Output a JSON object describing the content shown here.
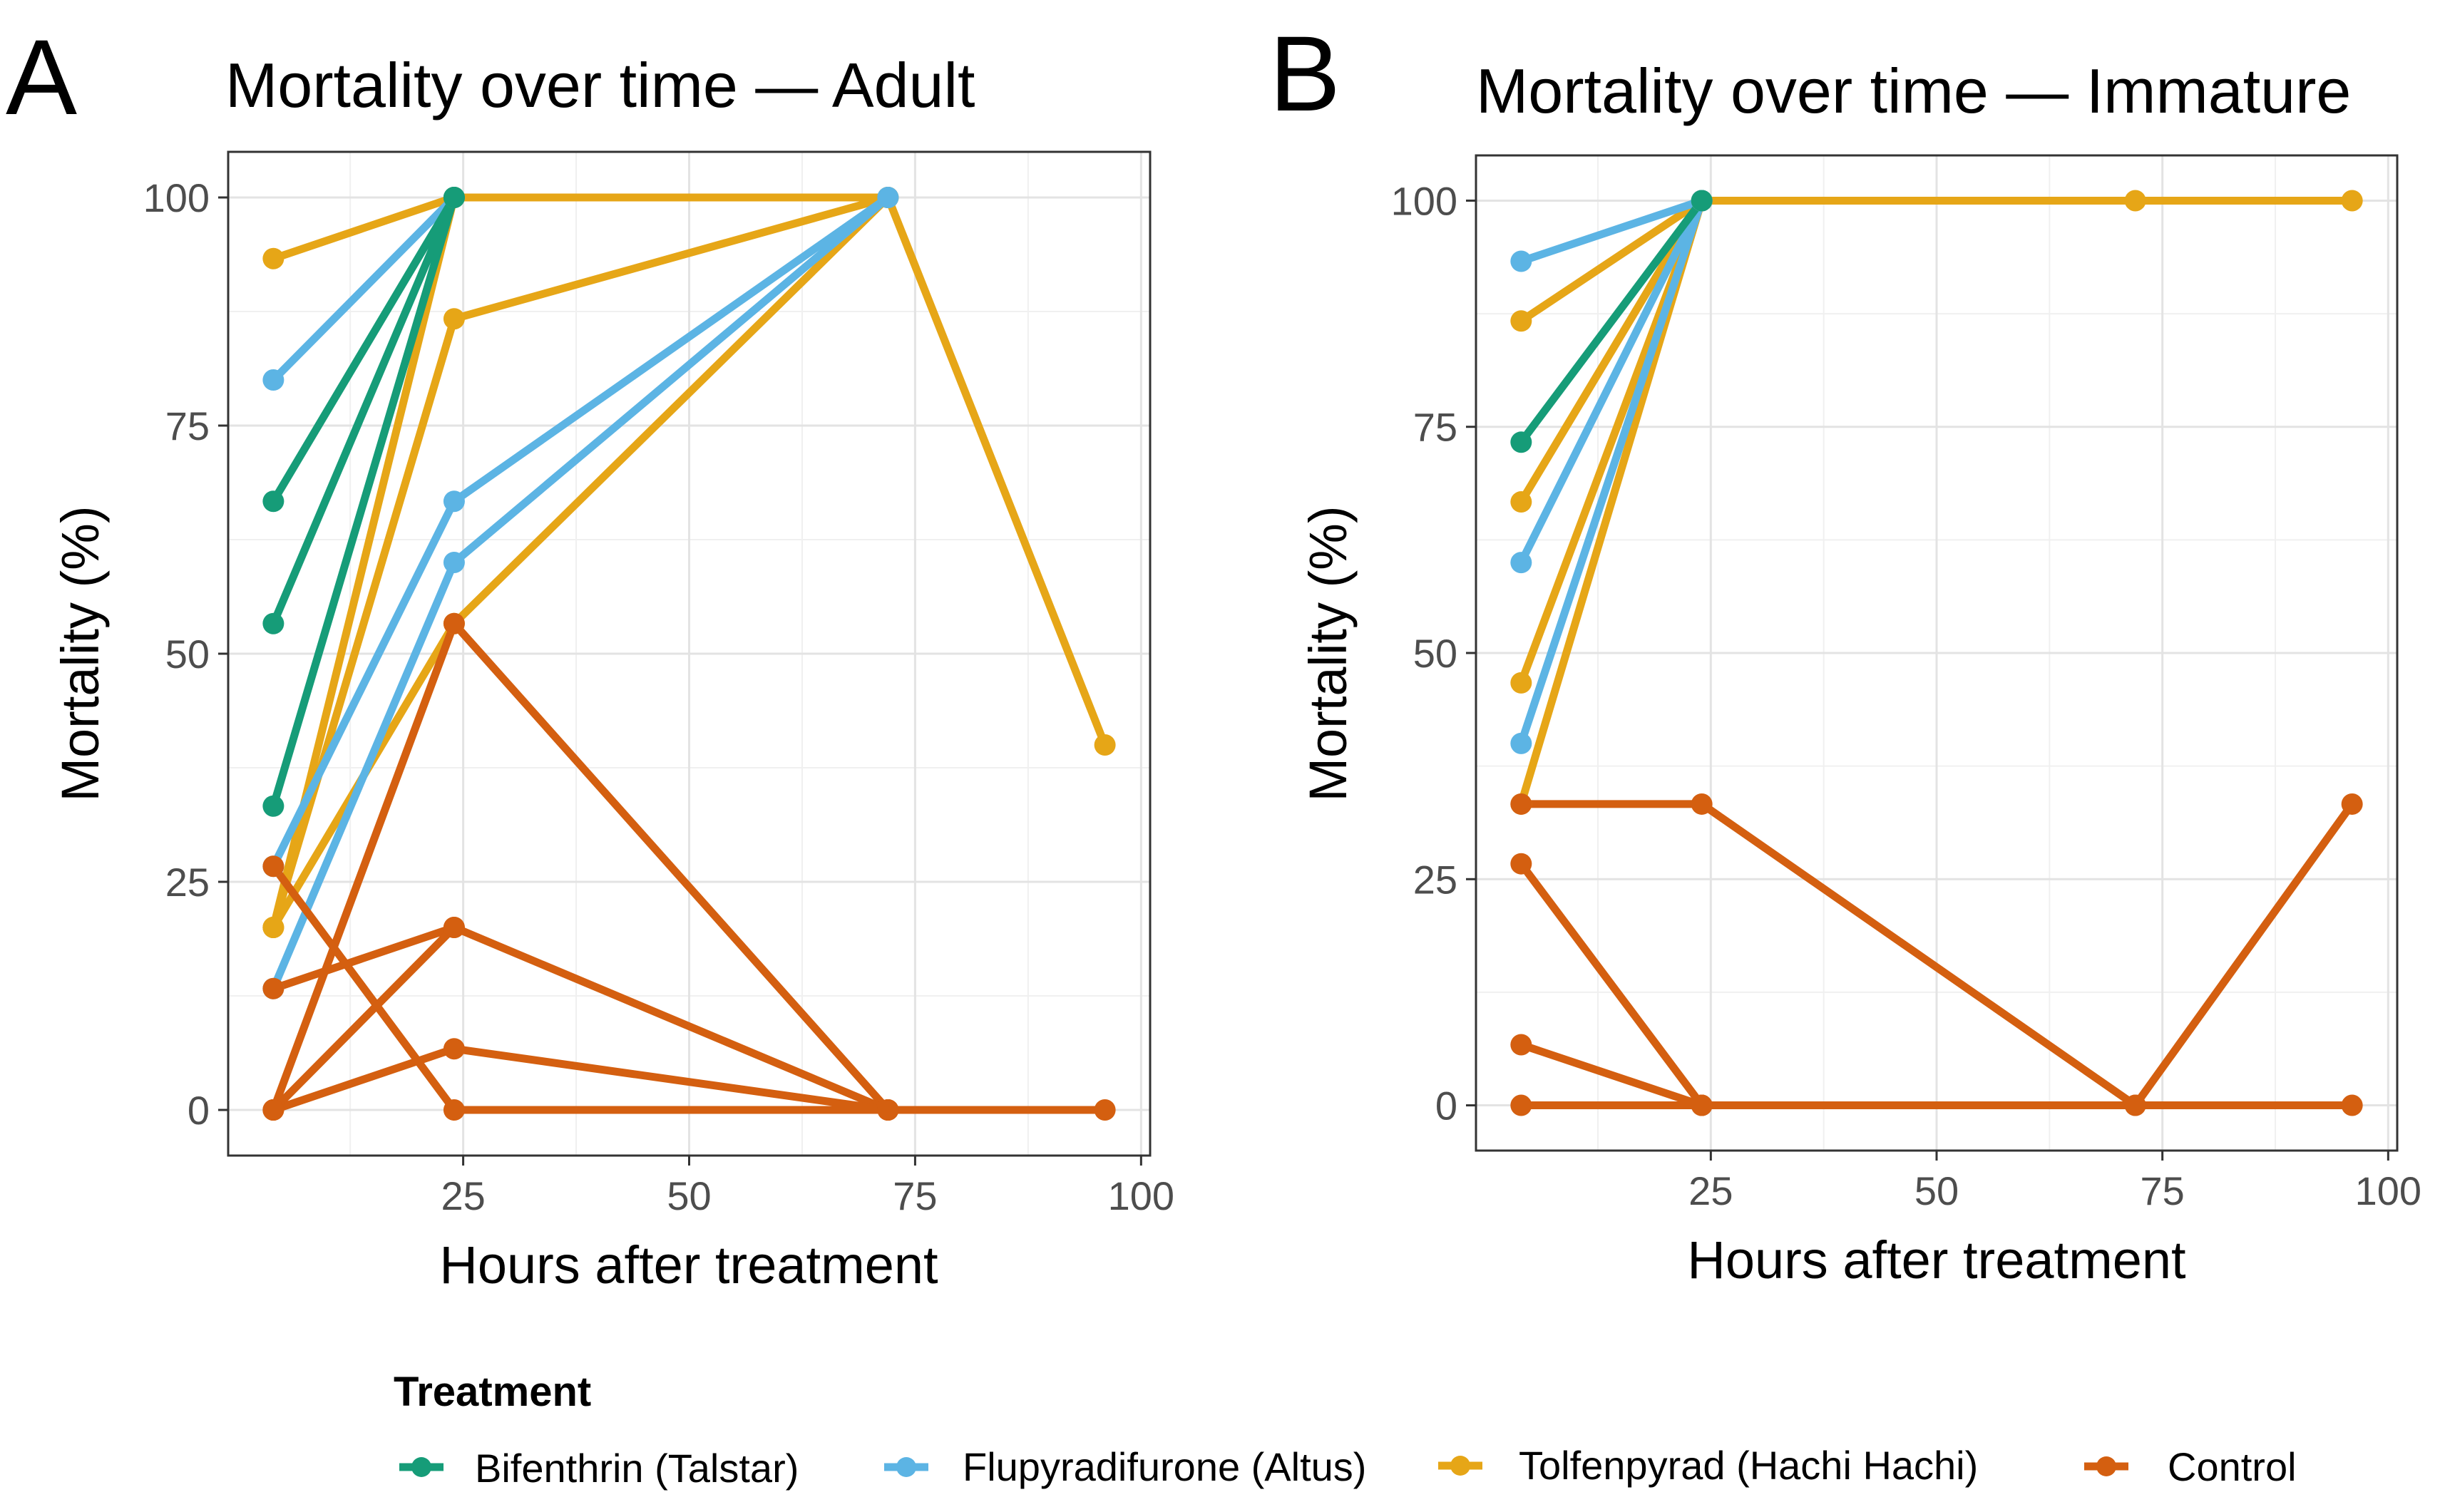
{
  "legend": {
    "title": "Treatment",
    "items": [
      {
        "key": "bifenthrin",
        "label": "Bifenthrin (Talstar)",
        "color": "#169C78"
      },
      {
        "key": "flupyradifurone",
        "label": "Flupyradifurone (Altus)",
        "color": "#5CB4E4"
      },
      {
        "key": "tolfenpyrad",
        "label": "Tolfenpyrad (Hachi Hachi)",
        "color": "#E6A617"
      },
      {
        "key": "control",
        "label": "Control",
        "color": "#D45F10"
      }
    ]
  },
  "chart_data": [
    {
      "type": "line",
      "panel": "A",
      "title": "Mortality over time — Adult",
      "xlabel": "Hours after treatment",
      "ylabel": "Mortality (%)",
      "xlim": [
        -1,
        101
      ],
      "ylim": [
        -5,
        105
      ],
      "xticks": [
        25,
        50,
        75,
        100
      ],
      "yticks": [
        0,
        25,
        50,
        75,
        100
      ],
      "grid": true,
      "series": [
        {
          "group": "tolfenpyrad",
          "x": [
            4,
            24,
            72,
            96
          ],
          "y": [
            93.3,
            100,
            100,
            40
          ]
        },
        {
          "group": "tolfenpyrad",
          "x": [
            4,
            24,
            72
          ],
          "y": [
            20,
            86.7,
            100
          ]
        },
        {
          "group": "tolfenpyrad",
          "x": [
            4,
            24,
            72
          ],
          "y": [
            20,
            53.3,
            100
          ]
        },
        {
          "group": "tolfenpyrad",
          "x": [
            4,
            24
          ],
          "y": [
            20,
            100
          ]
        },
        {
          "group": "flupyradifurone",
          "x": [
            4,
            24
          ],
          "y": [
            80,
            100
          ]
        },
        {
          "group": "flupyradifurone",
          "x": [
            4,
            24,
            72
          ],
          "y": [
            26.7,
            66.7,
            100
          ]
        },
        {
          "group": "flupyradifurone",
          "x": [
            4,
            24,
            72
          ],
          "y": [
            13.3,
            60,
            100
          ]
        },
        {
          "group": "bifenthrin",
          "x": [
            4,
            24
          ],
          "y": [
            66.7,
            100
          ]
        },
        {
          "group": "bifenthrin",
          "x": [
            4,
            24
          ],
          "y": [
            53.3,
            100
          ]
        },
        {
          "group": "bifenthrin",
          "x": [
            4,
            24
          ],
          "y": [
            33.3,
            100
          ]
        },
        {
          "group": "control",
          "x": [
            4,
            24,
            72
          ],
          "y": [
            0,
            53.3,
            0
          ]
        },
        {
          "group": "control",
          "x": [
            4,
            24,
            72
          ],
          "y": [
            13.3,
            20,
            0
          ]
        },
        {
          "group": "control",
          "x": [
            4,
            24,
            72
          ],
          "y": [
            0,
            6.7,
            0
          ]
        },
        {
          "group": "control",
          "x": [
            4,
            24,
            72,
            96
          ],
          "y": [
            26.7,
            0,
            0,
            0
          ]
        },
        {
          "group": "control",
          "x": [
            4,
            24
          ],
          "y": [
            0,
            20
          ]
        }
      ]
    },
    {
      "type": "line",
      "panel": "B",
      "title": "Mortality over time — Immature",
      "xlabel": "Hours after treatment",
      "ylabel": "Mortality (%)",
      "xlim": [
        -1,
        101
      ],
      "ylim": [
        -5,
        105
      ],
      "xticks": [
        25,
        50,
        75,
        100
      ],
      "yticks": [
        0,
        25,
        50,
        75,
        100
      ],
      "grid": true,
      "series": [
        {
          "group": "tolfenpyrad",
          "x": [
            4,
            24,
            72,
            96
          ],
          "y": [
            86.7,
            100,
            100,
            100
          ]
        },
        {
          "group": "tolfenpyrad",
          "x": [
            4,
            24
          ],
          "y": [
            66.7,
            100
          ]
        },
        {
          "group": "tolfenpyrad",
          "x": [
            4,
            24
          ],
          "y": [
            46.7,
            100
          ]
        },
        {
          "group": "tolfenpyrad",
          "x": [
            4,
            24
          ],
          "y": [
            33.3,
            100
          ]
        },
        {
          "group": "flupyradifurone",
          "x": [
            4,
            24
          ],
          "y": [
            93.3,
            100
          ]
        },
        {
          "group": "flupyradifurone",
          "x": [
            4,
            24
          ],
          "y": [
            60,
            100
          ]
        },
        {
          "group": "flupyradifurone",
          "x": [
            4,
            24
          ],
          "y": [
            40,
            100
          ]
        },
        {
          "group": "bifenthrin",
          "x": [
            4,
            24
          ],
          "y": [
            73.3,
            100
          ]
        },
        {
          "group": "control",
          "x": [
            4,
            24,
            72,
            96
          ],
          "y": [
            33.3,
            33.3,
            0,
            33.3
          ]
        },
        {
          "group": "control",
          "x": [
            4,
            24
          ],
          "y": [
            26.7,
            0
          ]
        },
        {
          "group": "control",
          "x": [
            4,
            24
          ],
          "y": [
            6.7,
            0
          ]
        },
        {
          "group": "control",
          "x": [
            4,
            24,
            72,
            96
          ],
          "y": [
            0,
            0,
            0,
            0
          ]
        }
      ]
    }
  ]
}
